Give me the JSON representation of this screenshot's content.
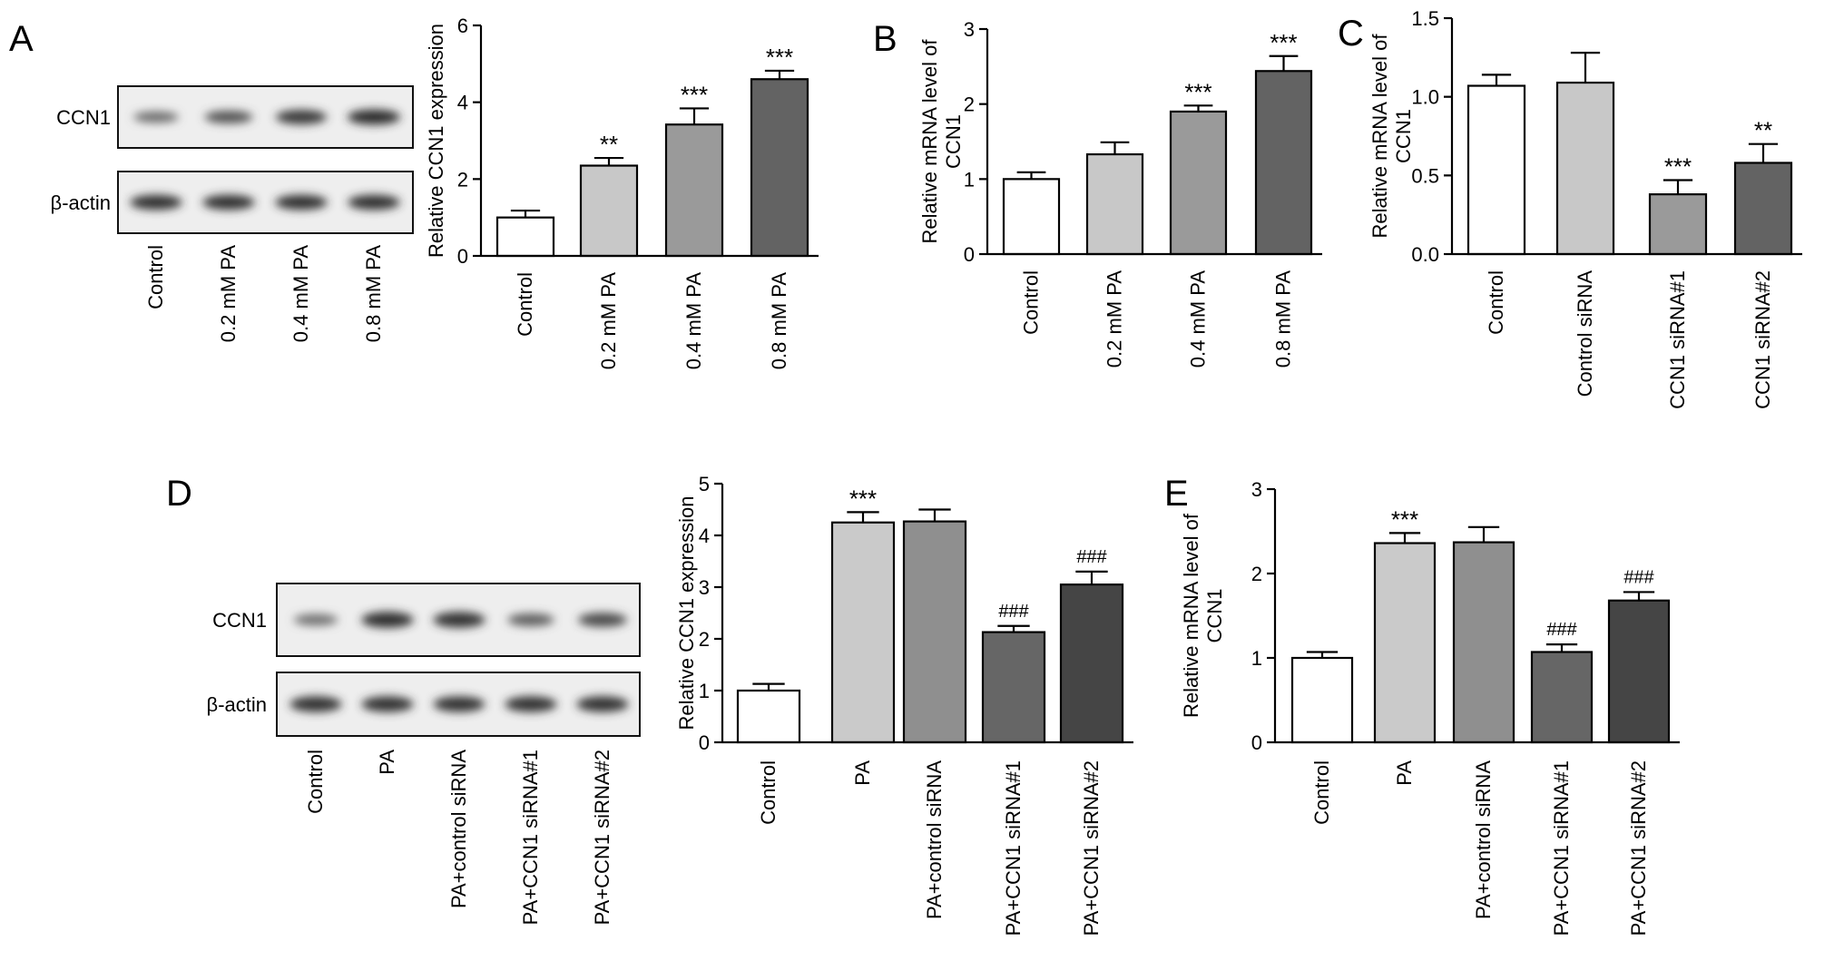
{
  "figure": {
    "panels": [
      {
        "id": "A",
        "letter": "A"
      },
      {
        "id": "B",
        "letter": "B"
      },
      {
        "id": "C",
        "letter": "C"
      },
      {
        "id": "D",
        "letter": "D"
      },
      {
        "id": "E",
        "letter": "E"
      }
    ]
  },
  "blots": [
    {
      "id": "A",
      "lanes": [
        "Control",
        "0.2 mM PA",
        "0.4 mM PA",
        "0.8 mM PA"
      ],
      "rows": [
        {
          "label": "CCN1",
          "intensity": [
            0.45,
            0.65,
            0.85,
            0.95
          ]
        },
        {
          "label": "β-actin",
          "intensity": [
            0.92,
            0.92,
            0.92,
            0.92
          ]
        }
      ]
    },
    {
      "id": "D",
      "lanes": [
        "Control",
        "PA",
        "PA+control siRNA",
        "PA+CCN1 siRNA#1",
        "PA+CCN1 siRNA#2"
      ],
      "rows": [
        {
          "label": "CCN1",
          "intensity": [
            0.4,
            0.92,
            0.9,
            0.55,
            0.7
          ]
        },
        {
          "label": "β-actin",
          "intensity": [
            0.9,
            0.9,
            0.88,
            0.9,
            0.9
          ]
        }
      ]
    }
  ],
  "chart_data": [
    {
      "panel": "A",
      "type": "bar",
      "ylabel": [
        "Relative CCN1 expression"
      ],
      "categories": [
        "Control",
        "0.2 mM PA",
        "0.4 mM PA",
        "0.8 mM PA"
      ],
      "values": [
        1.0,
        2.35,
        3.42,
        4.6
      ],
      "errors": [
        0.18,
        0.2,
        0.42,
        0.22
      ],
      "annotations": [
        "",
        "**",
        "***",
        "***"
      ],
      "colors": [
        "#ffffff",
        "#c8c8c8",
        "#9a9a9a",
        "#636363"
      ],
      "ylim": [
        0,
        6
      ],
      "yticks": [
        0,
        2,
        4,
        6
      ],
      "ytick_labels": [
        "0",
        "2",
        "4",
        "6"
      ]
    },
    {
      "panel": "B",
      "type": "bar",
      "ylabel": [
        "Relative mRNA level of",
        "CCN1"
      ],
      "categories": [
        "Control",
        "0.2 mM PA",
        "0.4 mM PA",
        "0.8 mM PA"
      ],
      "values": [
        1.0,
        1.33,
        1.9,
        2.44
      ],
      "errors": [
        0.09,
        0.16,
        0.08,
        0.2
      ],
      "annotations": [
        "",
        "",
        "***",
        "***"
      ],
      "colors": [
        "#ffffff",
        "#c8c8c8",
        "#9a9a9a",
        "#636363"
      ],
      "ylim": [
        0,
        3
      ],
      "yticks": [
        0,
        1,
        2,
        3
      ],
      "ytick_labels": [
        "0",
        "1",
        "2",
        "3"
      ]
    },
    {
      "panel": "C",
      "type": "bar",
      "ylabel": [
        "Relative mRNA level of",
        "CCN1"
      ],
      "categories": [
        "Control",
        "Control siRNA",
        "CCN1 siRNA#1",
        "CCN1 siRNA#2"
      ],
      "values": [
        1.07,
        1.09,
        0.38,
        0.58
      ],
      "errors": [
        0.07,
        0.19,
        0.09,
        0.12
      ],
      "annotations": [
        "",
        "",
        "***",
        "**"
      ],
      "colors": [
        "#ffffff",
        "#c8c8c8",
        "#9a9a9a",
        "#636363"
      ],
      "ylim": [
        0,
        1.5
      ],
      "yticks": [
        0,
        0.5,
        1.0,
        1.5
      ],
      "ytick_labels": [
        "0.0",
        "0.5",
        "1.0",
        "1.5"
      ]
    },
    {
      "panel": "D",
      "type": "bar",
      "ylabel": [
        "Relative CCN1 expression"
      ],
      "categories": [
        "Control",
        "PA",
        "PA+control siRNA",
        "PA+CCN1 siRNA#1",
        "PA+CCN1 siRNA#2"
      ],
      "values": [
        1.0,
        4.25,
        4.27,
        2.13,
        3.05
      ],
      "errors": [
        0.13,
        0.2,
        0.23,
        0.12,
        0.25
      ],
      "annotations": [
        "",
        "***",
        "",
        "###",
        "###"
      ],
      "colors": [
        "#ffffff",
        "#cacaca",
        "#8f8f8f",
        "#666666",
        "#454545"
      ],
      "ylim": [
        0,
        5
      ],
      "yticks": [
        0,
        1,
        2,
        3,
        4,
        5
      ],
      "ytick_labels": [
        "0",
        "1",
        "2",
        "3",
        "4",
        "5"
      ]
    },
    {
      "panel": "E",
      "type": "bar",
      "ylabel": [
        "Relative mRNA level of",
        "CCN1"
      ],
      "categories": [
        "Control",
        "PA",
        "PA+control siRNA",
        "PA+CCN1 siRNA#1",
        "PA+CCN1 siRNA#2"
      ],
      "values": [
        1.0,
        2.36,
        2.37,
        1.07,
        1.68
      ],
      "errors": [
        0.07,
        0.12,
        0.18,
        0.09,
        0.1
      ],
      "annotations": [
        "",
        "***",
        "",
        "###",
        "###"
      ],
      "colors": [
        "#ffffff",
        "#cacaca",
        "#8f8f8f",
        "#666666",
        "#454545"
      ],
      "ylim": [
        0,
        3
      ],
      "yticks": [
        0,
        1,
        2,
        3
      ],
      "ytick_labels": [
        "0",
        "1",
        "2",
        "3"
      ]
    }
  ]
}
